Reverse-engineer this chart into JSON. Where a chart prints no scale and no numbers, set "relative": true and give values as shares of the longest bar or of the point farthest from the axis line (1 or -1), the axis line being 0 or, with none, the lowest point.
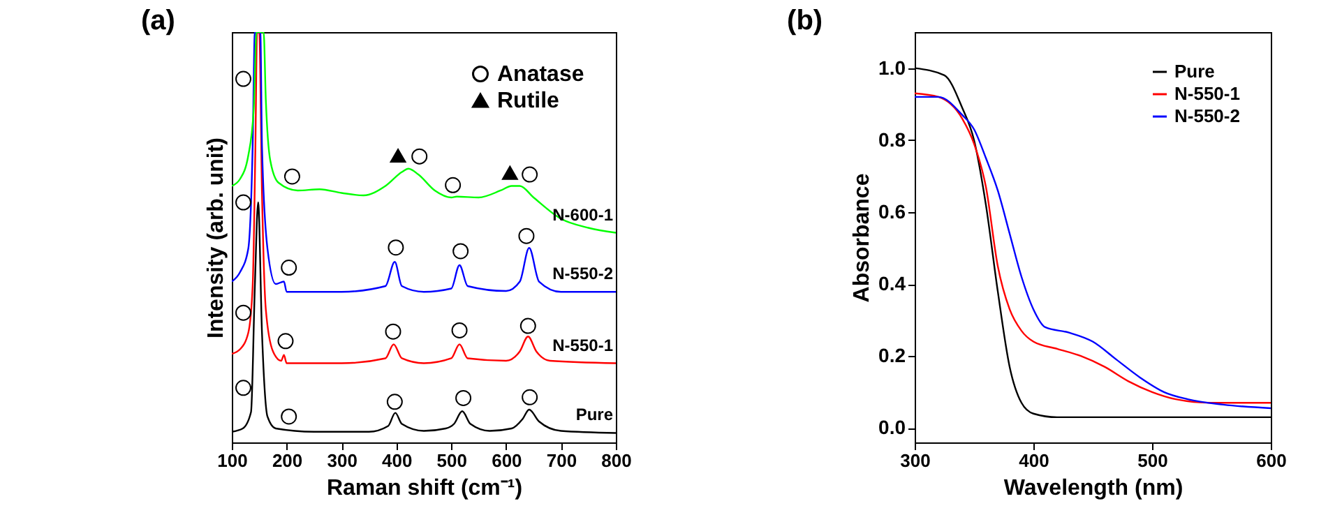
{
  "chart_data": [
    {
      "type": "line",
      "title": "(a)",
      "xlabel": "Raman shift (cm⁻¹)",
      "ylabel": "Intensity (arb. unit)",
      "relative": true,
      "xlim": [
        100,
        800
      ],
      "xticks": [
        100,
        200,
        300,
        400,
        500,
        600,
        700,
        800
      ],
      "tick_labels": "x",
      "grid": false,
      "legend": "top right",
      "series": [
        {
          "name": "Pure",
          "color": "#000000",
          "x": [
            100,
            120,
            135,
            142,
            148,
            155,
            165,
            180,
            250,
            350,
            385,
            398,
            410,
            450,
            490,
            505,
            520,
            535,
            570,
            610,
            630,
            642,
            660,
            700,
            800
          ],
          "values": [
            0.026,
            0.034,
            0.074,
            0.381,
            0.585,
            0.267,
            0.063,
            0.034,
            0.026,
            0.026,
            0.04,
            0.072,
            0.045,
            0.028,
            0.034,
            0.045,
            0.076,
            0.045,
            0.028,
            0.034,
            0.057,
            0.08,
            0.051,
            0.028,
            0.023
          ]
        },
        {
          "name": "N-550-1",
          "color": "#ff0000",
          "x": [
            100,
            115,
            130,
            138,
            143,
            146,
            150,
            155,
            162,
            175,
            190,
            195,
            200,
            300,
            380,
            395,
            410,
            450,
            500,
            515,
            530,
            600,
            625,
            640,
            655,
            680,
            800
          ],
          "values": [
            0.216,
            0.227,
            0.267,
            0.381,
            0.722,
            1,
            1,
            0.608,
            0.324,
            0.222,
            0.199,
            0.213,
            0.193,
            0.193,
            0.205,
            0.239,
            0.205,
            0.193,
            0.205,
            0.239,
            0.205,
            0.199,
            0.222,
            0.258,
            0.222,
            0.199,
            0.193
          ]
        },
        {
          "name": "N-550-2",
          "color": "#0000ff",
          "x": [
            100,
            115,
            130,
            138,
            142,
            152,
            155,
            165,
            180,
            195,
            200,
            300,
            380,
            397,
            410,
            450,
            500,
            515,
            530,
            600,
            625,
            642,
            660,
            700,
            800
          ],
          "values": [
            0.392,
            0.415,
            0.472,
            0.722,
            1,
            1,
            0.722,
            0.472,
            0.386,
            0.392,
            0.367,
            0.367,
            0.381,
            0.44,
            0.381,
            0.367,
            0.375,
            0.432,
            0.381,
            0.369,
            0.392,
            0.474,
            0.392,
            0.367,
            0.367
          ]
        },
        {
          "name": "N-600-1",
          "color": "#00ff00",
          "x": [
            100,
            115,
            130,
            140,
            145,
            158,
            162,
            170,
            185,
            220,
            260,
            300,
            340,
            380,
            410,
            422,
            440,
            470,
            500,
            510,
            550,
            590,
            610,
            625,
            650,
            700,
            750,
            800
          ],
          "values": [
            0.625,
            0.642,
            0.699,
            0.813,
            1,
            1,
            0.835,
            0.688,
            0.633,
            0.614,
            0.617,
            0.608,
            0.602,
            0.625,
            0.659,
            0.667,
            0.653,
            0.614,
            0.597,
            0.599,
            0.597,
            0.614,
            0.625,
            0.625,
            0.597,
            0.545,
            0.523,
            0.511
          ]
        },
        {
          "name": "Anatase",
          "type": "scatter",
          "marker": "circle",
          "color": "#000000",
          "x": [
            121,
            210,
            442,
            503,
            643,
            121,
            204,
            399,
            517,
            637,
            121,
            198,
            394,
            515,
            640,
            121,
            204,
            397,
            522,
            643
          ],
          "values": [
            0.886,
            0.648,
            0.697,
            0.627,
            0.653,
            0.585,
            0.426,
            0.475,
            0.466,
            0.503,
            0.316,
            0.247,
            0.27,
            0.273,
            0.284,
            0.133,
            0.063,
            0.099,
            0.108,
            0.11
          ]
        },
        {
          "name": "Rutile",
          "type": "scatter",
          "marker": "triangle",
          "color": "#000000",
          "x": [
            403,
            607
          ],
          "values": [
            0.699,
            0.657
          ]
        }
      ]
    },
    {
      "type": "line",
      "title": "(b)",
      "xlabel": "Wavelength (nm)",
      "ylabel": "Absorbance",
      "xlim": [
        300,
        600
      ],
      "xticks": [
        300,
        400,
        500,
        600
      ],
      "ylim": [
        -0.04,
        1.1
      ],
      "yticks": [
        {
          "value": 0,
          "label": "0.0"
        },
        0.2,
        0.4,
        0.6,
        0.8,
        {
          "value": 1,
          "label": "1.0"
        }
      ],
      "grid": false,
      "legend": "top right",
      "series": [
        {
          "name": "Pure",
          "color": "#000000",
          "x": [
            300,
            325,
            340,
            350,
            360,
            370,
            380,
            390,
            400,
            420,
            500,
            600
          ],
          "values": [
            1.0,
            0.98,
            0.89,
            0.8,
            0.62,
            0.38,
            0.17,
            0.07,
            0.04,
            0.03,
            0.03,
            0.03
          ]
        },
        {
          "name": "N-550-1",
          "color": "#ff0000",
          "x": [
            300,
            320,
            340,
            350,
            360,
            370,
            380,
            390,
            400,
            420,
            440,
            460,
            480,
            500,
            520,
            550,
            600
          ],
          "values": [
            0.93,
            0.92,
            0.86,
            0.79,
            0.67,
            0.45,
            0.33,
            0.27,
            0.24,
            0.22,
            0.2,
            0.17,
            0.13,
            0.1,
            0.08,
            0.07,
            0.07
          ]
        },
        {
          "name": "N-550-2",
          "color": "#0000ff",
          "x": [
            300,
            320,
            340,
            350,
            360,
            370,
            380,
            390,
            400,
            410,
            430,
            450,
            470,
            490,
            510,
            530,
            560,
            600
          ],
          "values": [
            0.92,
            0.92,
            0.87,
            0.83,
            0.75,
            0.66,
            0.54,
            0.42,
            0.33,
            0.28,
            0.265,
            0.24,
            0.19,
            0.14,
            0.1,
            0.08,
            0.065,
            0.055
          ]
        }
      ]
    }
  ]
}
